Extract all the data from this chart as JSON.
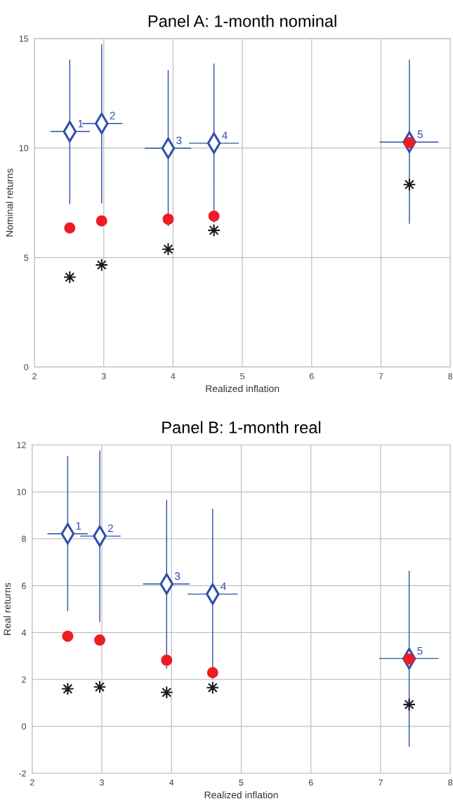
{
  "chart_data": [
    {
      "type": "scatter",
      "title": "Panel A: 1-month nominal",
      "xlabel": "Realized inflation",
      "ylabel": "Nominal returns",
      "xlim": [
        2,
        8
      ],
      "xticks": [
        2,
        3,
        4,
        5,
        6,
        7,
        8
      ],
      "ylim": [
        0,
        15
      ],
      "yticks": [
        0,
        5,
        10,
        15
      ],
      "grid": true,
      "legend": false,
      "series": [
        {
          "color": "#2f4fa8",
          "marker": "diamond",
          "x": [
            2.51,
            2.97,
            3.93,
            4.59,
            7.41
          ],
          "values": [
            10.75,
            11.12,
            9.99,
            10.22,
            10.27
          ],
          "errors": [
            [
              7.44,
              14.03
            ],
            [
              7.47,
              14.74
            ],
            [
              6.43,
              13.56
            ],
            [
              6.59,
              13.86
            ],
            [
              6.54,
              14.03
            ]
          ],
          "xerrors": [
            [
              2.23,
              2.8
            ],
            [
              2.69,
              3.27
            ],
            [
              3.59,
              4.26
            ],
            [
              4.23,
              4.95
            ],
            [
              6.98,
              7.83
            ]
          ]
        },
        {
          "color": "#ee1c24",
          "marker": "circle",
          "x": [
            2.51,
            2.97,
            3.93,
            4.59,
            7.41
          ],
          "values": [
            6.35,
            6.67,
            6.75,
            6.89,
            10.25
          ]
        },
        {
          "color": "#1a1a1a",
          "marker": "star",
          "x": [
            2.51,
            2.97,
            3.93,
            4.59,
            7.41
          ],
          "values": [
            4.1,
            4.66,
            5.38,
            6.24,
            8.33
          ]
        }
      ],
      "annotations": [
        {
          "text": "1",
          "x": 2.51,
          "y": 10.75
        },
        {
          "text": "2",
          "x": 2.97,
          "y": 11.12
        },
        {
          "text": "3",
          "x": 3.93,
          "y": 9.99
        },
        {
          "text": "4",
          "x": 4.59,
          "y": 10.22
        },
        {
          "text": "5",
          "x": 7.41,
          "y": 10.27
        }
      ]
    },
    {
      "type": "scatter",
      "title": "Panel B: 1-month real",
      "xlabel": "Realized inflation",
      "ylabel": "Real returns",
      "xlim": [
        2,
        8
      ],
      "xticks": [
        2,
        3,
        4,
        5,
        6,
        7,
        8
      ],
      "ylim": [
        -2,
        12
      ],
      "yticks": [
        -2,
        0,
        2,
        4,
        6,
        8,
        10,
        12
      ],
      "grid": true,
      "legend": false,
      "series": [
        {
          "color": "#2f4fa8",
          "marker": "diamond",
          "x": [
            2.51,
            2.97,
            3.93,
            4.59,
            7.41
          ],
          "values": [
            8.21,
            8.11,
            6.07,
            5.64,
            2.89
          ],
          "errors": [
            [
              4.92,
              11.53
            ],
            [
              4.45,
              11.76
            ],
            [
              2.46,
              9.65
            ],
            [
              2.02,
              9.28
            ],
            [
              -0.86,
              6.64
            ]
          ],
          "xerrors": [
            [
              2.22,
              2.8
            ],
            [
              2.69,
              3.27
            ],
            [
              3.59,
              4.26
            ],
            [
              4.23,
              4.95
            ],
            [
              6.98,
              7.83
            ]
          ]
        },
        {
          "color": "#ee1c24",
          "marker": "circle",
          "x": [
            2.51,
            2.97,
            3.93,
            4.59,
            7.41
          ],
          "values": [
            3.84,
            3.68,
            2.82,
            2.29,
            2.87
          ]
        },
        {
          "color": "#1a1a1a",
          "marker": "star",
          "x": [
            2.51,
            2.97,
            3.93,
            4.59,
            7.41
          ],
          "values": [
            1.6,
            1.68,
            1.45,
            1.65,
            0.93
          ]
        }
      ],
      "annotations": [
        {
          "text": "1",
          "x": 2.51,
          "y": 8.21
        },
        {
          "text": "2",
          "x": 2.97,
          "y": 8.11
        },
        {
          "text": "3",
          "x": 3.93,
          "y": 6.07
        },
        {
          "text": "4",
          "x": 4.59,
          "y": 5.64
        },
        {
          "text": "5",
          "x": 7.41,
          "y": 2.89
        }
      ]
    }
  ]
}
